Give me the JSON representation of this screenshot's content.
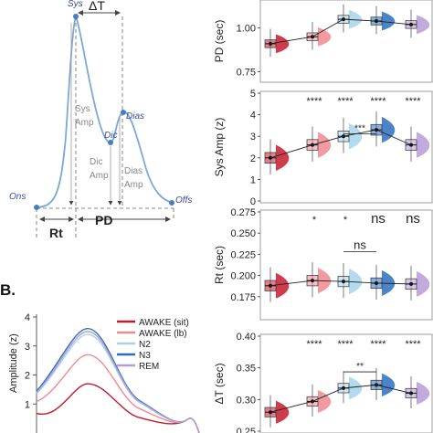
{
  "colors": {
    "awake_sit": "#c41b2c",
    "awake_lb": "#ef8a91",
    "n2": "#a7d4ea",
    "n3": "#2c6fbd",
    "rem": "#b89bd6",
    "wave": "#7ea8d4",
    "label": "#3b4a9c"
  },
  "diagram": {
    "sys": "Sys",
    "dic": "Dic",
    "dias": "Dias",
    "ons": "Ons",
    "offs": "Offs",
    "delta_t": "ΔT",
    "sys_amp_1": "Sys",
    "sys_amp_2": "Amp",
    "dic_amp_1": "Dic",
    "dic_amp_2": "Amp",
    "dias_amp_1": "Dias",
    "dias_amp_2": "Amp",
    "rt": "Rt",
    "pd": "PD"
  },
  "panel_b_label": "B.",
  "chart_data": [
    {
      "type": "line",
      "panel": "B",
      "ylabel": "Amplitude (z)",
      "ylim": [
        0,
        4
      ],
      "yticks": [
        "1",
        "2",
        "3",
        "4"
      ],
      "legend": [
        "AWAKE (sit)",
        "AWAKE (lb)",
        "N2",
        "N3",
        "REM"
      ],
      "series": [
        {
          "name": "AWAKE (sit)",
          "peak": 1.7
        },
        {
          "name": "AWAKE (lb)",
          "peak": 2.7
        },
        {
          "name": "N2",
          "peak": 3.4
        },
        {
          "name": "N3",
          "peak": 3.6
        },
        {
          "name": "REM",
          "peak": 3.5
        }
      ]
    },
    {
      "type": "box",
      "ylabel": "PD (sec)",
      "ylim": [
        0.7,
        1.15
      ],
      "yticks": [
        "0.75",
        "1.00"
      ],
      "medians": [
        0.91,
        0.95,
        1.05,
        1.04,
        1.02
      ],
      "sig": [
        "",
        "",
        "",
        "",
        ""
      ]
    },
    {
      "type": "box",
      "ylabel": "Sys Amp (z)",
      "ylim": [
        0,
        5
      ],
      "yticks": [
        "0",
        "1",
        "2",
        "3",
        "4",
        "5"
      ],
      "medians": [
        2.0,
        2.6,
        3.0,
        3.3,
        2.6
      ],
      "sig": [
        "",
        "****",
        "****",
        "****",
        "****"
      ],
      "bracket": "***"
    },
    {
      "type": "box",
      "ylabel": "Rt (sec)",
      "ylim": [
        0.15,
        0.275
      ],
      "yticks": [
        "0.175",
        "0.200",
        "0.225",
        "0.250",
        "0.275"
      ],
      "medians": [
        0.188,
        0.194,
        0.193,
        0.191,
        0.19
      ],
      "sig": [
        "",
        "*",
        "*",
        "ns",
        "ns"
      ],
      "bracket": "ns"
    },
    {
      "type": "box",
      "ylabel": "ΔT (sec)",
      "ylim": [
        0.25,
        0.4
      ],
      "yticks": [
        "0.25",
        "0.30",
        "0.35",
        "0.40"
      ],
      "medians": [
        0.28,
        0.297,
        0.318,
        0.323,
        0.31
      ],
      "sig": [
        "",
        "****",
        "****",
        "****",
        "****"
      ],
      "bracket": "**"
    }
  ]
}
